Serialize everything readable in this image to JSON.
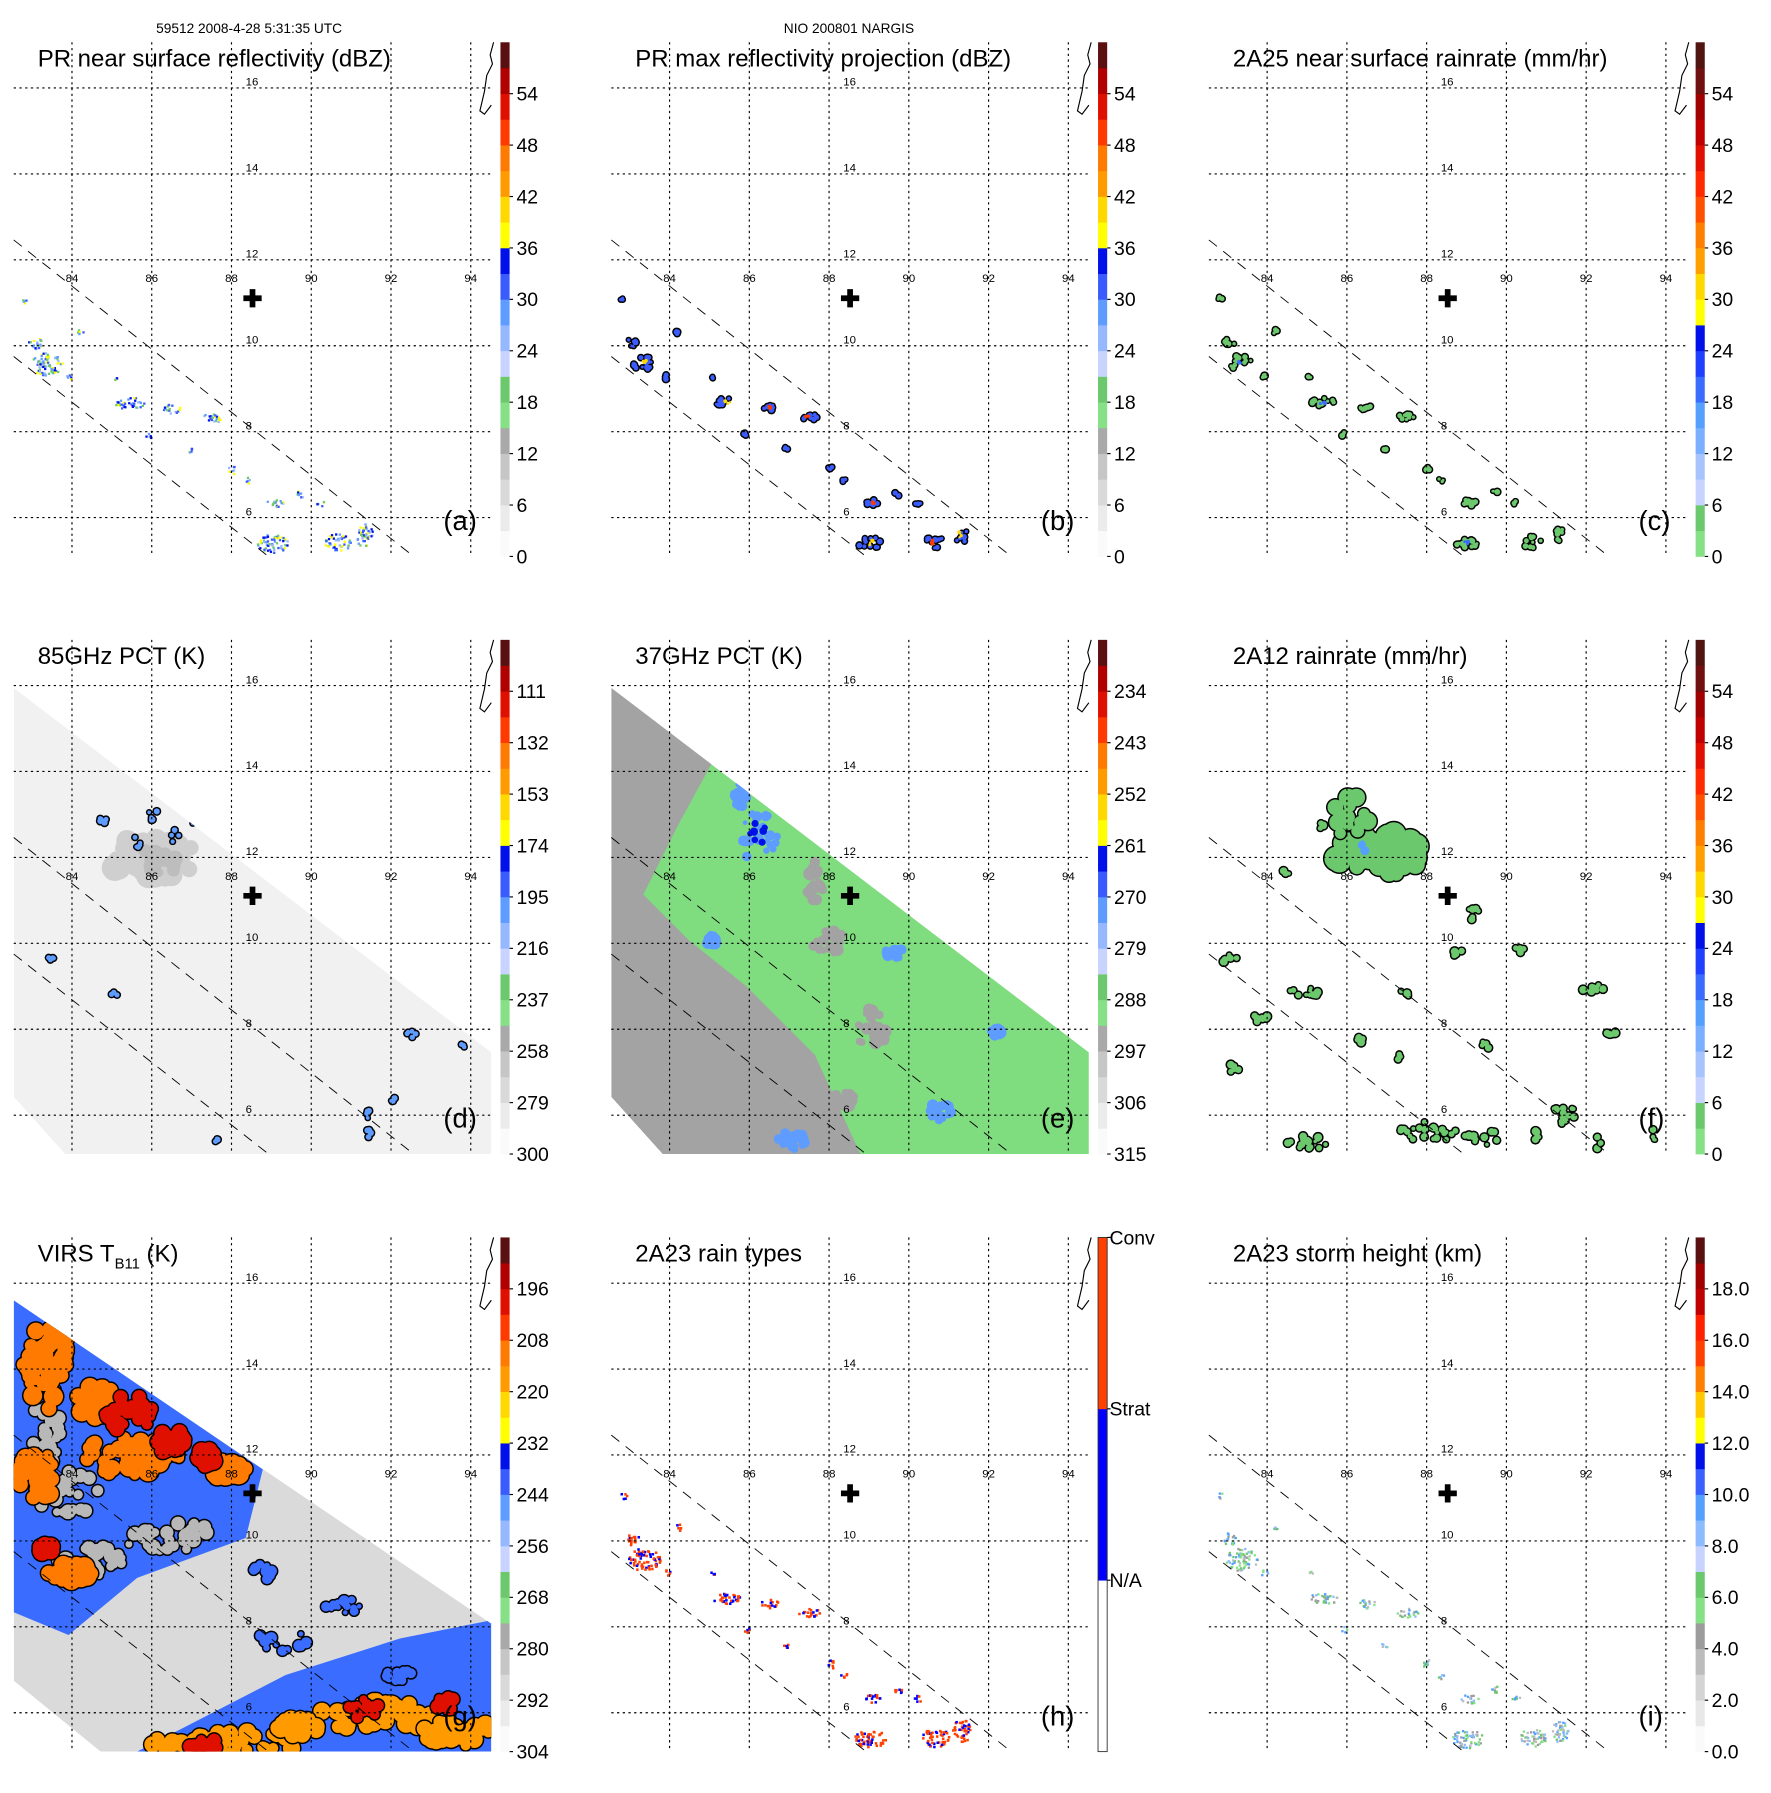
{
  "header": {
    "orbit_time": "59512 2008-4-28 5:31:35 UTC",
    "storm": "NIO 200801 NARGIS"
  },
  "map": {
    "lat_labels": [
      "16",
      "14",
      "12",
      "10",
      "8",
      "6"
    ],
    "lon_labels": [
      "84",
      "86",
      "88",
      "90",
      "92",
      "94"
    ],
    "center_marker": "storm-center-cross"
  },
  "colorscales": {
    "refl": [
      "#fafafa",
      "#ebebeb",
      "#d9d9d9",
      "#c6c6c6",
      "#a9a9a9",
      "#86e086",
      "#6cc86c",
      "#c8d4ff",
      "#96b8ff",
      "#5f9cff",
      "#3a5cff",
      "#0010e8",
      "#ffff00",
      "#ffd800",
      "#ff9a00",
      "#ff7a00",
      "#ff3a00",
      "#e01000",
      "#b00000",
      "#5a1010"
    ],
    "rain": [
      "#86e086",
      "#6cc86c",
      "#c8d4ff",
      "#a8c4ff",
      "#7ab0ff",
      "#55a0ff",
      "#3a6cff",
      "#2040ff",
      "#0010e8",
      "#ffff00",
      "#ffd800",
      "#ffa000",
      "#ff8000",
      "#ff5000",
      "#ff2a00",
      "#e01000",
      "#c00000",
      "#a00000",
      "#701010",
      "#501510"
    ],
    "height": [
      "#fafafa",
      "#e8e8e8",
      "#d4d4d4",
      "#bcbcbc",
      "#9c9c9c",
      "#86e086",
      "#6cc86c",
      "#c8d4ff",
      "#8cbcff",
      "#55a0ff",
      "#3a60ff",
      "#0010e8",
      "#ffff00",
      "#ffc800",
      "#ff8000",
      "#ff4000",
      "#ff2000",
      "#c00000",
      "#a00000",
      "#5a1010"
    ],
    "raintype": [
      "#ffffff",
      "#0000ff",
      "#ff4000"
    ]
  },
  "chart_data": [
    {
      "type": "heatmap",
      "title": "PR near surface reflectivity (dBZ)",
      "letter": "(a)",
      "scale": "refl",
      "colorbar_labels": [
        "54",
        "48",
        "42",
        "36",
        "30",
        "24",
        "18",
        "12",
        "6",
        "0"
      ],
      "range": [
        0,
        60
      ]
    },
    {
      "type": "heatmap",
      "title": "PR max reflectivity projection (dBZ)",
      "letter": "(b)",
      "scale": "refl",
      "colorbar_labels": [
        "54",
        "48",
        "42",
        "36",
        "30",
        "24",
        "18",
        "12",
        "6",
        "0"
      ],
      "range": [
        0,
        60
      ]
    },
    {
      "type": "heatmap",
      "title": "2A25 near surface rainrate (mm/hr)",
      "letter": "(c)",
      "scale": "rain",
      "colorbar_labels": [
        "54",
        "48",
        "42",
        "36",
        "30",
        "24",
        "18",
        "12",
        "6",
        "0"
      ],
      "range": [
        0,
        60
      ]
    },
    {
      "type": "heatmap",
      "title": "85GHz PCT (K)",
      "letter": "(d)",
      "scale": "refl",
      "colorbar_labels": [
        "111",
        "132",
        "153",
        "174",
        "195",
        "216",
        "237",
        "258",
        "279",
        "300"
      ],
      "range": [
        321,
        90
      ]
    },
    {
      "type": "heatmap",
      "title": "37GHz PCT (K)",
      "letter": "(e)",
      "scale": "refl",
      "colorbar_labels": [
        "234",
        "243",
        "252",
        "261",
        "270",
        "279",
        "288",
        "297",
        "306",
        "315"
      ],
      "range": [
        324,
        225
      ]
    },
    {
      "type": "heatmap",
      "title": "2A12 rainrate (mm/hr)",
      "letter": "(f)",
      "scale": "rain",
      "colorbar_labels": [
        "54",
        "48",
        "42",
        "36",
        "30",
        "24",
        "18",
        "12",
        "6",
        "0"
      ],
      "range": [
        0,
        60
      ]
    },
    {
      "type": "heatmap",
      "title": "VIRS T",
      "title_sub": "B11",
      "title_suffix": " (K)",
      "letter": "(g)",
      "scale": "refl",
      "colorbar_labels": [
        "196",
        "208",
        "220",
        "232",
        "244",
        "256",
        "268",
        "280",
        "292",
        "304"
      ],
      "range": [
        316,
        184
      ]
    },
    {
      "type": "heatmap",
      "title": "2A23 rain types",
      "letter": "(h)",
      "scale": "raintype",
      "colorbar_labels": [
        "Conv",
        "Strat",
        "N/A"
      ]
    },
    {
      "type": "heatmap",
      "title": "2A23 storm height (km)",
      "letter": "(i)",
      "scale": "height",
      "colorbar_labels": [
        "18.0",
        "16.0",
        "14.0",
        "12.0",
        "10.0",
        "8.0",
        "6.0",
        "4.0",
        "2.0",
        "0.0"
      ],
      "range": [
        0,
        20
      ]
    }
  ]
}
